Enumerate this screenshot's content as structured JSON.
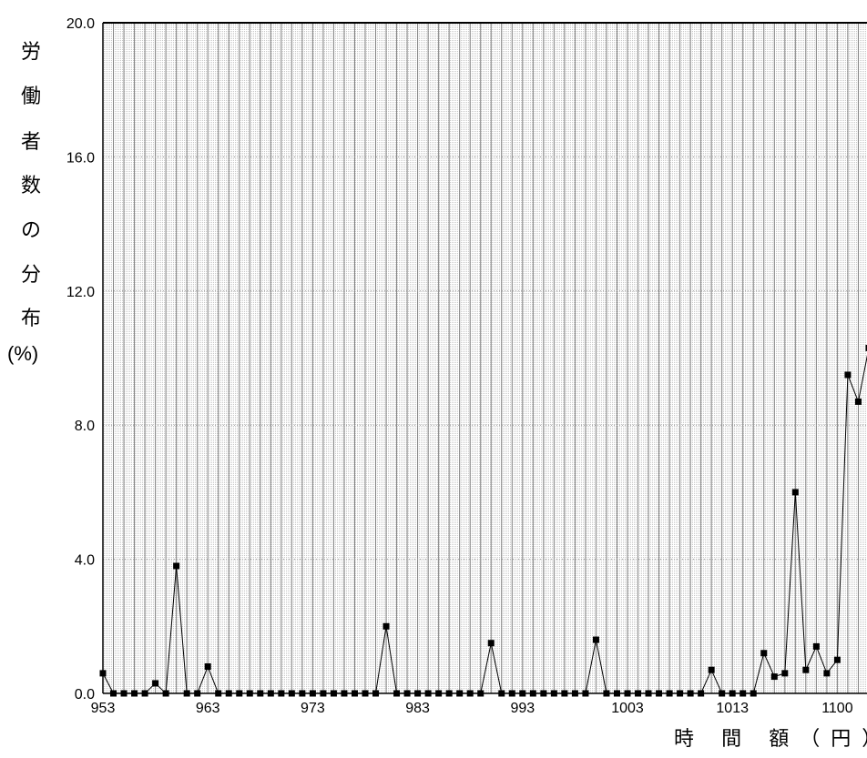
{
  "chart_data": {
    "type": "line",
    "title": "",
    "xlabel": "時 間 額（円）",
    "ylabel_chars": [
      "労",
      "働",
      "者",
      "数",
      "の",
      "分",
      "布",
      "(%)"
    ],
    "ylim": [
      0,
      20
    ],
    "yticks": [
      "0.0",
      "4.0",
      "8.0",
      "12.0",
      "16.0",
      "20.0"
    ],
    "xtick_labels": [
      "953",
      "963",
      "973",
      "983",
      "993",
      "1003",
      "1013",
      "1100"
    ],
    "grid": "vertical, one line per category",
    "series": [
      {
        "values": [
          0.6,
          0.0,
          0.0,
          0.0,
          0.0,
          0.3,
          0.0,
          3.8,
          0.0,
          0.0,
          0.8,
          0.0,
          0.0,
          0.0,
          0.0,
          0.0,
          0.0,
          0.0,
          0.0,
          0.0,
          0.0,
          0.0,
          0.0,
          0.0,
          0.0,
          0.0,
          0.0,
          2.0,
          0.0,
          0.0,
          0.0,
          0.0,
          0.0,
          0.0,
          0.0,
          0.0,
          0.0,
          1.5,
          0.0,
          0.0,
          0.0,
          0.0,
          0.0,
          0.0,
          0.0,
          0.0,
          0.0,
          1.6,
          0.0,
          0.0,
          0.0,
          0.0,
          0.0,
          0.0,
          0.0,
          0.0,
          0.0,
          0.0,
          0.7,
          0.0,
          0.0,
          0.0,
          0.0,
          1.2,
          0.5,
          0.6,
          6.0,
          0.7,
          1.4,
          0.6,
          1.0,
          9.5,
          8.7,
          10.3
        ]
      }
    ],
    "colors": {
      "line": "#000000",
      "marker": "#000000",
      "grid": "#808080",
      "background": "#ffffff"
    }
  }
}
